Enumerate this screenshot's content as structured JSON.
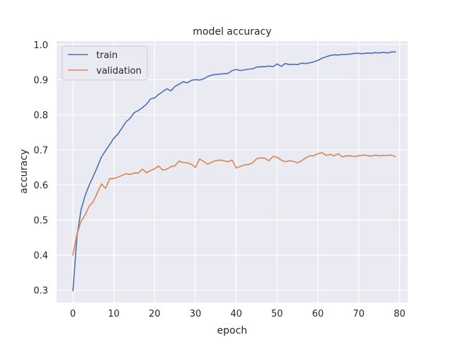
{
  "chart_data": {
    "type": "line",
    "title": "model accuracy",
    "xlabel": "epoch",
    "ylabel": "accuracy",
    "xlim": [
      -4,
      82
    ],
    "ylim": [
      0.265,
      1.01
    ],
    "xticks": [
      0,
      10,
      20,
      30,
      40,
      50,
      60,
      70,
      80
    ],
    "xtick_labels": [
      "0",
      "10",
      "20",
      "30",
      "40",
      "50",
      "60",
      "70",
      "80"
    ],
    "yticks": [
      0.3,
      0.4,
      0.5,
      0.6,
      0.7,
      0.8,
      0.9,
      1.0
    ],
    "ytick_labels": [
      "0.3",
      "0.4",
      "0.5",
      "0.6",
      "0.7",
      "0.8",
      "0.9",
      "1.0"
    ],
    "grid": true,
    "legend_position": "top-left",
    "background_color": "#eaeaf2",
    "series": [
      {
        "name": "train",
        "color": "#4c72b0",
        "x": [
          0,
          1,
          2,
          3,
          4,
          5,
          6,
          7,
          8,
          9,
          10,
          11,
          12,
          13,
          14,
          15,
          16,
          17,
          18,
          19,
          20,
          21,
          22,
          23,
          24,
          25,
          26,
          27,
          28,
          29,
          30,
          31,
          32,
          33,
          34,
          35,
          36,
          37,
          38,
          39,
          40,
          41,
          42,
          43,
          44,
          45,
          46,
          47,
          48,
          49,
          50,
          51,
          52,
          53,
          54,
          55,
          56,
          57,
          58,
          59,
          60,
          61,
          62,
          63,
          64,
          65,
          66,
          67,
          68,
          69,
          70,
          71,
          72,
          73,
          74,
          75,
          76,
          77,
          78,
          79
        ],
        "values": [
          0.298,
          0.455,
          0.53,
          0.57,
          0.6,
          0.625,
          0.652,
          0.68,
          0.698,
          0.715,
          0.733,
          0.745,
          0.762,
          0.78,
          0.79,
          0.806,
          0.812,
          0.82,
          0.83,
          0.845,
          0.848,
          0.858,
          0.866,
          0.874,
          0.868,
          0.881,
          0.887,
          0.894,
          0.891,
          0.898,
          0.9,
          0.899,
          0.902,
          0.909,
          0.913,
          0.915,
          0.916,
          0.917,
          0.918,
          0.926,
          0.929,
          0.926,
          0.928,
          0.93,
          0.931,
          0.936,
          0.937,
          0.937,
          0.939,
          0.937,
          0.945,
          0.938,
          0.946,
          0.943,
          0.944,
          0.943,
          0.947,
          0.946,
          0.948,
          0.951,
          0.955,
          0.961,
          0.965,
          0.969,
          0.971,
          0.97,
          0.972,
          0.972,
          0.973,
          0.975,
          0.975,
          0.974,
          0.976,
          0.975,
          0.977,
          0.976,
          0.978,
          0.976,
          0.979,
          0.979
        ]
      },
      {
        "name": "validation",
        "color": "#dd8452",
        "x": [
          0,
          1,
          2,
          3,
          4,
          5,
          6,
          7,
          8,
          9,
          10,
          11,
          12,
          13,
          14,
          15,
          16,
          17,
          18,
          19,
          20,
          21,
          22,
          23,
          24,
          25,
          26,
          27,
          28,
          29,
          30,
          31,
          32,
          33,
          34,
          35,
          36,
          37,
          38,
          39,
          40,
          41,
          42,
          43,
          44,
          45,
          46,
          47,
          48,
          49,
          50,
          51,
          52,
          53,
          54,
          55,
          56,
          57,
          58,
          59,
          60,
          61,
          62,
          63,
          64,
          65,
          66,
          67,
          68,
          69,
          70,
          71,
          72,
          73,
          74,
          75,
          76,
          77,
          78,
          79
        ],
        "values": [
          0.4,
          0.46,
          0.497,
          0.515,
          0.54,
          0.553,
          0.578,
          0.603,
          0.59,
          0.618,
          0.618,
          0.622,
          0.627,
          0.632,
          0.63,
          0.634,
          0.634,
          0.645,
          0.635,
          0.641,
          0.646,
          0.654,
          0.642,
          0.645,
          0.652,
          0.655,
          0.668,
          0.664,
          0.663,
          0.659,
          0.65,
          0.674,
          0.667,
          0.659,
          0.665,
          0.669,
          0.671,
          0.669,
          0.666,
          0.671,
          0.648,
          0.653,
          0.657,
          0.658,
          0.663,
          0.675,
          0.677,
          0.676,
          0.669,
          0.681,
          0.679,
          0.671,
          0.666,
          0.669,
          0.667,
          0.663,
          0.669,
          0.677,
          0.683,
          0.683,
          0.689,
          0.692,
          0.684,
          0.687,
          0.683,
          0.689,
          0.68,
          0.683,
          0.683,
          0.681,
          0.683,
          0.685,
          0.684,
          0.682,
          0.685,
          0.683,
          0.684,
          0.684,
          0.685,
          0.681
        ]
      }
    ]
  }
}
